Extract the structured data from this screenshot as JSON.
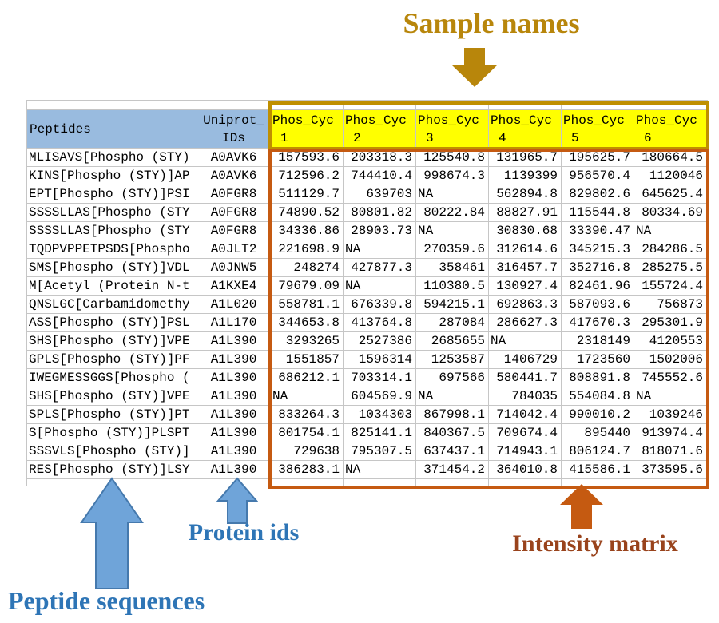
{
  "annotations": {
    "sample_names": "Sample names",
    "protein_ids": "Protein ids",
    "peptide_sequences": "Peptide sequences",
    "intensity_matrix": "Intensity matrix"
  },
  "colors": {
    "header_blue": "#99BBDF",
    "header_yellow": "#FFFF00",
    "gold_box": "#BF8F00",
    "gold_text": "#B8860B",
    "orange_box": "#C55A11",
    "blue_annotation_text": "#2E75B6",
    "brown_annotation_text": "#99431C",
    "arrow_blue_fill": "#6FA4D9",
    "arrow_blue_stroke": "#4579AD",
    "gridline": "#C6C6C6"
  },
  "table": {
    "columns": {
      "peptides_header": "Peptides",
      "uniprot_header_line1": "Uniprot_",
      "uniprot_header_line2": "IDs",
      "sample_prefix": "Phos_Cyc",
      "sample_numbers": [
        "1",
        "2",
        "3",
        "4",
        "5",
        "6"
      ]
    },
    "rows": [
      {
        "peptide": "MLISAVS[Phospho (STY)",
        "uniprot": "A0AVK6",
        "values": [
          "157593.6",
          "203318.3",
          "125540.8",
          "131965.7",
          "195625.7",
          "180664.5"
        ]
      },
      {
        "peptide": "KINS[Phospho (STY)]AP",
        "uniprot": "A0AVK6",
        "values": [
          "712596.2",
          "744410.4",
          "998674.3",
          "1139399",
          "956570.4",
          "1120046"
        ]
      },
      {
        "peptide": "EPT[Phospho (STY)]PSI",
        "uniprot": "A0FGR8",
        "values": [
          "511129.7",
          "639703",
          "NA",
          "562894.8",
          "829802.6",
          "645625.4"
        ]
      },
      {
        "peptide": "SSSSLLAS[Phospho (STY",
        "uniprot": "A0FGR8",
        "values": [
          "74890.52",
          "80801.82",
          "80222.84",
          "88827.91",
          "115544.8",
          "80334.69"
        ]
      },
      {
        "peptide": "SSSSLLAS[Phospho (STY",
        "uniprot": "A0FGR8",
        "values": [
          "34336.86",
          "28903.73",
          "NA",
          "30830.68",
          "33390.47",
          "NA"
        ]
      },
      {
        "peptide": "TQDPVPPETPSDS[Phospho",
        "uniprot": "A0JLT2",
        "values": [
          "221698.9",
          "NA",
          "270359.6",
          "312614.6",
          "345215.3",
          "284286.5"
        ]
      },
      {
        "peptide": "SMS[Phospho (STY)]VDL",
        "uniprot": "A0JNW5",
        "values": [
          "248274",
          "427877.3",
          "358461",
          "316457.7",
          "352716.8",
          "285275.5"
        ]
      },
      {
        "peptide": "M[Acetyl (Protein N-t",
        "uniprot": "A1KXE4",
        "values": [
          "79679.09",
          "NA",
          "110380.5",
          "130927.4",
          "82461.96",
          "155724.4"
        ]
      },
      {
        "peptide": "QNSLGC[Carbamidomethy",
        "uniprot": "A1L020",
        "values": [
          "558781.1",
          "676339.8",
          "594215.1",
          "692863.3",
          "587093.6",
          "756873"
        ]
      },
      {
        "peptide": "ASS[Phospho (STY)]PSL",
        "uniprot": "A1L170",
        "values": [
          "344653.8",
          "413764.8",
          "287084",
          "286627.3",
          "417670.3",
          "295301.9"
        ]
      },
      {
        "peptide": "SHS[Phospho (STY)]VPE",
        "uniprot": "A1L390",
        "values": [
          "3293265",
          "2527386",
          "2685655",
          "NA",
          "2318149",
          "4120553"
        ]
      },
      {
        "peptide": "GPLS[Phospho (STY)]PF",
        "uniprot": "A1L390",
        "values": [
          "1551857",
          "1596314",
          "1253587",
          "1406729",
          "1723560",
          "1502006"
        ]
      },
      {
        "peptide": "IWEGMESSGGS[Phospho (",
        "uniprot": "A1L390",
        "values": [
          "686212.1",
          "703314.1",
          "697566",
          "580441.7",
          "808891.8",
          "745552.6"
        ]
      },
      {
        "peptide": "SHS[Phospho (STY)]VPE",
        "uniprot": "A1L390",
        "values": [
          "NA",
          "604569.9",
          "NA",
          "784035",
          "554084.8",
          "NA"
        ]
      },
      {
        "peptide": "SPLS[Phospho (STY)]PT",
        "uniprot": "A1L390",
        "values": [
          "833264.3",
          "1034303",
          "867998.1",
          "714042.4",
          "990010.2",
          "1039246"
        ]
      },
      {
        "peptide": "S[Phospho (STY)]PLSPT",
        "uniprot": "A1L390",
        "values": [
          "801754.1",
          "825141.1",
          "840367.5",
          "709674.4",
          "895440",
          "913974.4"
        ]
      },
      {
        "peptide": "SSSVLS[Phospho (STY)]",
        "uniprot": "A1L390",
        "values": [
          "729638",
          "795307.5",
          "637437.1",
          "714943.1",
          "806124.7",
          "818071.6"
        ]
      },
      {
        "peptide": "RES[Phospho (STY)]LSY",
        "uniprot": "A1L390",
        "values": [
          "386283.1",
          "NA",
          "371454.2",
          "364010.8",
          "415586.1",
          "373595.6"
        ]
      }
    ]
  }
}
